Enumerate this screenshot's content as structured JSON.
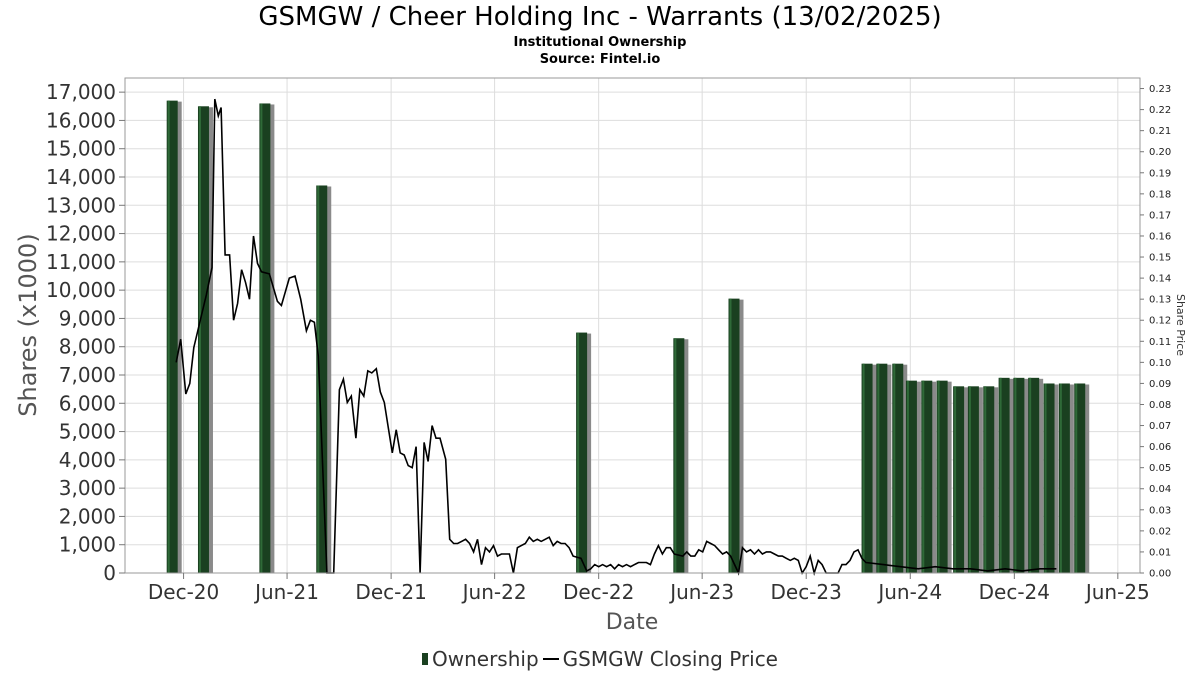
{
  "title": "GSMGW / Cheer Holding Inc - Warrants (13/02/2025)",
  "subtitle": "Institutional Ownership",
  "source": "Source: Fintel.io",
  "legend": {
    "ownership": "Ownership",
    "price": "GSMGW Closing Price"
  },
  "colors": {
    "bar": "#1a4020",
    "bar_shadow": "#8a8a8a",
    "line": "#000000",
    "grid": "#dddddd"
  },
  "chart_data": {
    "type": "bar",
    "xlabel": "Date",
    "ylabel": "Shares (x1000)",
    "y2label": "Share Price",
    "ylim": [
      0,
      17500
    ],
    "y2lim": [
      0,
      0.235
    ],
    "xlim": [
      "2020-08-20",
      "2025-07-10"
    ],
    "grid": true,
    "legend_position": "bottom",
    "x_ticks": [
      {
        "date": "2020-12-01",
        "label": "Dec-20"
      },
      {
        "date": "2021-06-01",
        "label": "Jun-21"
      },
      {
        "date": "2021-12-01",
        "label": "Dec-21"
      },
      {
        "date": "2022-06-01",
        "label": "Jun-22"
      },
      {
        "date": "2022-12-01",
        "label": "Dec-22"
      },
      {
        "date": "2023-06-01",
        "label": "Jun-23"
      },
      {
        "date": "2023-12-01",
        "label": "Dec-23"
      },
      {
        "date": "2024-06-01",
        "label": "Jun-24"
      },
      {
        "date": "2024-12-01",
        "label": "Dec-24"
      },
      {
        "date": "2025-06-01",
        "label": "Jun-25"
      }
    ],
    "y_ticks": [
      "0",
      "1,000",
      "2,000",
      "3,000",
      "4,000",
      "5,000",
      "6,000",
      "7,000",
      "8,000",
      "9,000",
      "10,000",
      "11,000",
      "12,000",
      "13,000",
      "14,000",
      "15,000",
      "16,000",
      "17,000"
    ],
    "y2_ticks": [
      "0.00",
      "0.01",
      "0.02",
      "0.03",
      "0.04",
      "0.05",
      "0.06",
      "0.07",
      "0.08",
      "0.09",
      "0.10",
      "0.11",
      "0.12",
      "0.13",
      "0.14",
      "0.15",
      "0.16",
      "0.17",
      "0.18",
      "0.19",
      "0.20",
      "0.21",
      "0.22",
      "0.23"
    ],
    "series": [
      {
        "name": "Ownership",
        "x": [
          "2020-11-11",
          "2021-01-05",
          "2021-04-23",
          "2021-08-01",
          "2022-11-01",
          "2023-04-21",
          "2023-07-27",
          "2024-03-17",
          "2024-04-12",
          "2024-05-10",
          "2024-06-03",
          "2024-06-30",
          "2024-07-27",
          "2024-08-25",
          "2024-09-20",
          "2024-10-17",
          "2024-11-13",
          "2024-12-09",
          "2025-01-04",
          "2025-01-31",
          "2025-02-27",
          "2025-03-26"
        ],
        "values": [
          16700,
          16500,
          16600,
          13700,
          8500,
          8300,
          9700,
          7400,
          7400,
          7400,
          6800,
          6800,
          6800,
          6600,
          6600,
          6600,
          6900,
          6900,
          6900,
          6700,
          6700,
          6700
        ]
      },
      {
        "name": "GSMGW Closing Price",
        "points": [
          [
            "2020-11-18",
            0.1
          ],
          [
            "2020-11-26",
            0.111
          ],
          [
            "2020-12-05",
            0.085
          ],
          [
            "2020-12-12",
            0.09
          ],
          [
            "2020-12-19",
            0.107
          ],
          [
            "2021-01-10",
            0.132
          ],
          [
            "2021-01-20",
            0.145
          ],
          [
            "2021-01-25",
            0.225
          ],
          [
            "2021-01-31",
            0.217
          ],
          [
            "2021-02-05",
            0.221
          ],
          [
            "2021-02-12",
            0.151
          ],
          [
            "2021-02-20",
            0.151
          ],
          [
            "2021-02-27",
            0.12
          ],
          [
            "2021-03-06",
            0.128
          ],
          [
            "2021-03-13",
            0.144
          ],
          [
            "2021-03-20",
            0.138
          ],
          [
            "2021-03-27",
            0.13
          ],
          [
            "2021-04-03",
            0.16
          ],
          [
            "2021-04-10",
            0.147
          ],
          [
            "2021-04-17",
            0.143
          ],
          [
            "2021-05-01",
            0.142
          ],
          [
            "2021-05-15",
            0.129
          ],
          [
            "2021-05-22",
            0.127
          ],
          [
            "2021-06-05",
            0.14
          ],
          [
            "2021-06-15",
            0.141
          ],
          [
            "2021-06-25",
            0.13
          ],
          [
            "2021-07-05",
            0.115
          ],
          [
            "2021-07-12",
            0.12
          ],
          [
            "2021-07-19",
            0.119
          ],
          [
            "2021-07-26",
            0.103
          ],
          [
            "2021-08-10",
            0.0
          ],
          [
            "2021-08-22",
            0.0
          ],
          [
            "2021-09-01",
            0.087
          ],
          [
            "2021-09-08",
            0.092
          ],
          [
            "2021-09-15",
            0.081
          ],
          [
            "2021-09-22",
            0.084
          ],
          [
            "2021-09-30",
            0.064
          ],
          [
            "2021-10-07",
            0.087
          ],
          [
            "2021-10-14",
            0.084
          ],
          [
            "2021-10-21",
            0.096
          ],
          [
            "2021-10-28",
            0.095
          ],
          [
            "2021-11-05",
            0.097
          ],
          [
            "2021-11-12",
            0.086
          ],
          [
            "2021-11-19",
            0.081
          ],
          [
            "2021-11-26",
            0.069
          ],
          [
            "2021-12-03",
            0.057
          ],
          [
            "2021-12-10",
            0.068
          ],
          [
            "2021-12-17",
            0.057
          ],
          [
            "2021-12-24",
            0.056
          ],
          [
            "2021-12-31",
            0.051
          ],
          [
            "2022-01-07",
            0.05
          ],
          [
            "2022-01-14",
            0.06
          ],
          [
            "2022-01-21",
            0.0
          ],
          [
            "2022-01-28",
            0.062
          ],
          [
            "2022-02-04",
            0.053
          ],
          [
            "2022-02-11",
            0.07
          ],
          [
            "2022-02-18",
            0.064
          ],
          [
            "2022-02-25",
            0.064
          ],
          [
            "2022-03-07",
            0.054
          ],
          [
            "2022-03-14",
            0.016
          ],
          [
            "2022-03-21",
            0.014
          ],
          [
            "2022-03-28",
            0.014
          ],
          [
            "2022-04-04",
            0.015
          ],
          [
            "2022-04-11",
            0.016
          ],
          [
            "2022-04-18",
            0.014
          ],
          [
            "2022-04-25",
            0.01
          ],
          [
            "2022-05-02",
            0.016
          ],
          [
            "2022-05-09",
            0.004
          ],
          [
            "2022-05-16",
            0.012
          ],
          [
            "2022-05-23",
            0.01
          ],
          [
            "2022-05-30",
            0.013
          ],
          [
            "2022-06-06",
            0.008
          ],
          [
            "2022-06-13",
            0.009
          ],
          [
            "2022-06-20",
            0.009
          ],
          [
            "2022-06-27",
            0.009
          ],
          [
            "2022-07-04",
            0.0
          ],
          [
            "2022-07-11",
            0.012
          ],
          [
            "2022-07-18",
            0.013
          ],
          [
            "2022-07-25",
            0.014
          ],
          [
            "2022-08-01",
            0.017
          ],
          [
            "2022-08-08",
            0.015
          ],
          [
            "2022-08-15",
            0.016
          ],
          [
            "2022-08-22",
            0.015
          ],
          [
            "2022-08-29",
            0.016
          ],
          [
            "2022-09-05",
            0.017
          ],
          [
            "2022-09-12",
            0.013
          ],
          [
            "2022-09-19",
            0.015
          ],
          [
            "2022-09-26",
            0.014
          ],
          [
            "2022-10-03",
            0.014
          ],
          [
            "2022-10-10",
            0.012
          ],
          [
            "2022-10-17",
            0.008
          ],
          [
            "2022-10-31",
            0.007
          ],
          [
            "2022-11-10",
            0.001
          ],
          [
            "2022-11-17",
            0.002
          ],
          [
            "2022-11-24",
            0.004
          ],
          [
            "2022-12-01",
            0.003
          ],
          [
            "2022-12-08",
            0.004
          ],
          [
            "2022-12-15",
            0.003
          ],
          [
            "2022-12-22",
            0.004
          ],
          [
            "2022-12-29",
            0.002
          ],
          [
            "2023-01-05",
            0.004
          ],
          [
            "2023-01-12",
            0.003
          ],
          [
            "2023-01-19",
            0.004
          ],
          [
            "2023-01-26",
            0.003
          ],
          [
            "2023-02-02",
            0.004
          ],
          [
            "2023-02-09",
            0.005
          ],
          [
            "2023-02-16",
            0.005
          ],
          [
            "2023-02-23",
            0.005
          ],
          [
            "2023-03-02",
            0.004
          ],
          [
            "2023-03-09",
            0.009
          ],
          [
            "2023-03-16",
            0.013
          ],
          [
            "2023-03-23",
            0.009
          ],
          [
            "2023-03-30",
            0.012
          ],
          [
            "2023-04-06",
            0.012
          ],
          [
            "2023-04-13",
            0.009
          ],
          [
            "2023-04-28",
            0.008
          ],
          [
            "2023-05-05",
            0.01
          ],
          [
            "2023-05-12",
            0.008
          ],
          [
            "2023-05-19",
            0.008
          ],
          [
            "2023-05-26",
            0.011
          ],
          [
            "2023-06-02",
            0.01
          ],
          [
            "2023-06-09",
            0.015
          ],
          [
            "2023-06-16",
            0.014
          ],
          [
            "2023-06-23",
            0.013
          ],
          [
            "2023-06-30",
            0.011
          ],
          [
            "2023-07-07",
            0.009
          ],
          [
            "2023-07-14",
            0.01
          ],
          [
            "2023-07-21",
            0.008
          ],
          [
            "2023-08-04",
            0.0
          ],
          [
            "2023-08-11",
            0.012
          ],
          [
            "2023-08-18",
            0.01
          ],
          [
            "2023-08-25",
            0.011
          ],
          [
            "2023-09-01",
            0.009
          ],
          [
            "2023-09-08",
            0.011
          ],
          [
            "2023-09-15",
            0.009
          ],
          [
            "2023-09-22",
            0.01
          ],
          [
            "2023-09-29",
            0.01
          ],
          [
            "2023-10-06",
            0.009
          ],
          [
            "2023-10-13",
            0.008
          ],
          [
            "2023-10-20",
            0.008
          ],
          [
            "2023-10-27",
            0.007
          ],
          [
            "2023-11-03",
            0.006
          ],
          [
            "2023-11-10",
            0.007
          ],
          [
            "2023-11-17",
            0.006
          ],
          [
            "2023-11-24",
            0.0
          ],
          [
            "2023-12-01",
            0.003
          ],
          [
            "2023-12-08",
            0.008
          ],
          [
            "2023-12-15",
            0.0
          ],
          [
            "2023-12-22",
            0.006
          ],
          [
            "2023-12-29",
            0.004
          ],
          [
            "2024-01-05",
            0.0
          ],
          [
            "2024-01-12",
            0.0
          ],
          [
            "2024-01-19",
            0.0
          ],
          [
            "2024-01-26",
            0.0
          ],
          [
            "2024-02-02",
            0.004
          ],
          [
            "2024-02-09",
            0.004
          ],
          [
            "2024-02-16",
            0.006
          ],
          [
            "2024-02-23",
            0.01
          ],
          [
            "2024-03-01",
            0.011
          ],
          [
            "2024-03-08",
            0.007
          ],
          [
            "2024-03-15",
            0.005
          ],
          [
            "2024-04-15",
            0.004
          ],
          [
            "2024-05-15",
            0.003
          ],
          [
            "2024-06-15",
            0.002
          ],
          [
            "2024-07-15",
            0.003
          ],
          [
            "2024-08-15",
            0.002
          ],
          [
            "2024-09-15",
            0.002
          ],
          [
            "2024-10-15",
            0.001
          ],
          [
            "2024-11-15",
            0.002
          ],
          [
            "2024-12-15",
            0.001
          ],
          [
            "2025-01-15",
            0.002
          ],
          [
            "2025-02-13",
            0.002
          ]
        ]
      }
    ]
  }
}
